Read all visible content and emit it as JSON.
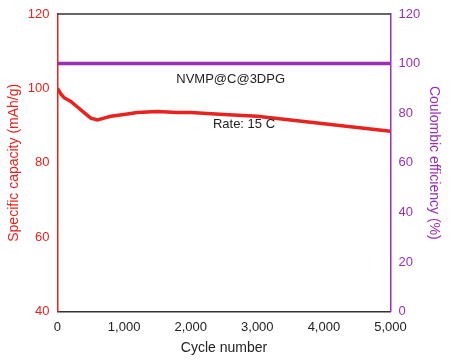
{
  "chart_data": {
    "type": "line",
    "x_label": "Cycle number",
    "y_label": "Specific capacity (mAh/g)",
    "y2_label": "Coulombic efficiency (%)",
    "annotations": [
      "NVMP@C@3DPG",
      "Rate: 15 C"
    ],
    "x": [
      0,
      50,
      100,
      200,
      300,
      400,
      500,
      600,
      700,
      800,
      1000,
      1200,
      1500,
      1800,
      2000,
      2500,
      3000,
      3500,
      4000,
      4500,
      5000
    ],
    "series": [
      {
        "name": "Specific capacity",
        "color": "#e8231f",
        "axis": "y",
        "values": [
          100,
          98.5,
          97.5,
          96.5,
          95,
          93.5,
          92,
          91.5,
          92,
          92.5,
          93,
          93.5,
          93.8,
          93.5,
          93.5,
          93,
          92.5,
          91.5,
          90.5,
          89.5,
          88.5
        ]
      },
      {
        "name": "Coulombic efficiency",
        "color": "#9a2fb5",
        "axis": "y2",
        "values": [
          100,
          100,
          100,
          100,
          100,
          100,
          100,
          100,
          100,
          100,
          100,
          100,
          100,
          100,
          100,
          100,
          100,
          100,
          100,
          100,
          100
        ]
      }
    ],
    "xlim": [
      0,
      5000
    ],
    "xticks": [
      0,
      1000,
      2000,
      3000,
      4000,
      5000
    ],
    "ylim": [
      40,
      120
    ],
    "yticks": [
      40,
      60,
      80,
      100,
      120
    ],
    "y2lim": [
      0,
      120
    ],
    "y2ticks": [
      0,
      20,
      40,
      60,
      80,
      100,
      120
    ],
    "grid": false
  }
}
